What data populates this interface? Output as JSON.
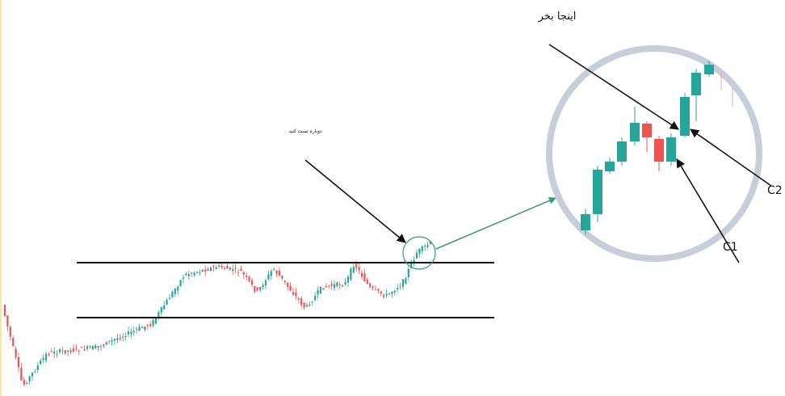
{
  "annotations": {
    "buy_here": "اینجا بخر",
    "retest": "دوباره تست کنید",
    "c2": "C2",
    "c1": "C1"
  }
}
